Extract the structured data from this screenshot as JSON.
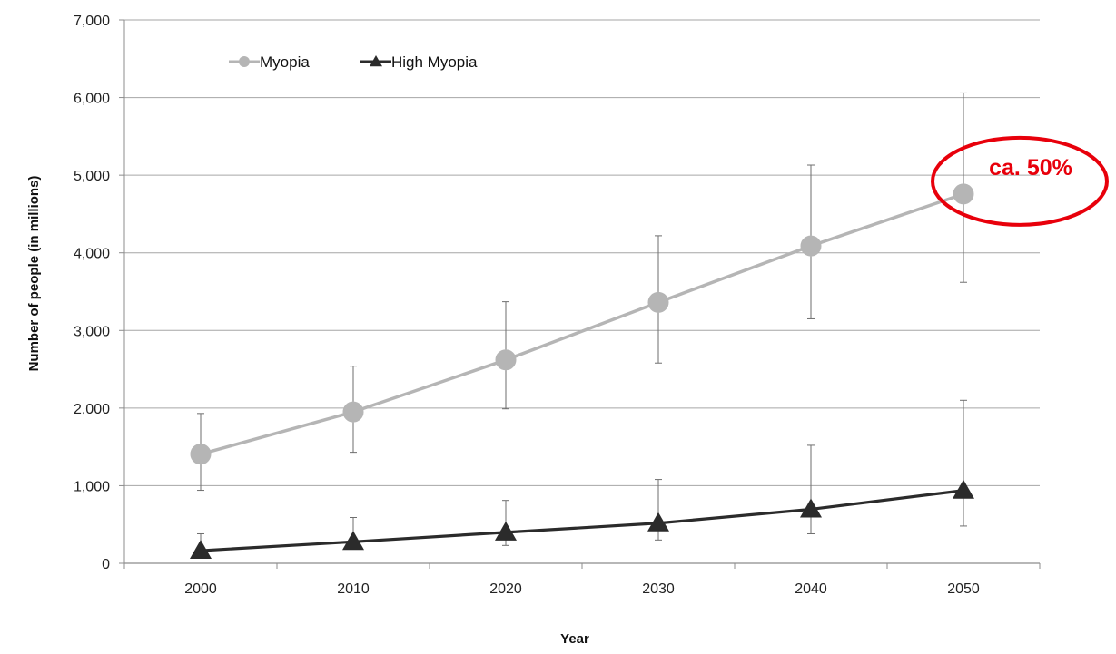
{
  "chart_data": {
    "type": "line",
    "title": "",
    "xlabel": "Year",
    "ylabel": "Number of people (in millions)",
    "ylim": [
      0,
      7000
    ],
    "y_ticks": [
      0,
      1000,
      2000,
      3000,
      4000,
      5000,
      6000,
      7000
    ],
    "y_tick_labels": [
      "0",
      "1,000",
      "2,000",
      "3,000",
      "4,000",
      "5,000",
      "6,000",
      "7,000"
    ],
    "categories": [
      "2000",
      "2010",
      "2020",
      "2030",
      "2040",
      "2050"
    ],
    "grid": "horizontal",
    "legend_position": "top-left",
    "series": [
      {
        "name": "Myopia",
        "color": "#b5b5b5",
        "marker": "circle",
        "values": [
          1406,
          1950,
          2620,
          3361,
          4089,
          4758
        ],
        "err_low": [
          940,
          1430,
          1990,
          2580,
          3150,
          3620
        ],
        "err_high": [
          1930,
          2540,
          3370,
          4220,
          5130,
          6060
        ]
      },
      {
        "name": "High Myopia",
        "color": "#2b2b2b",
        "marker": "triangle",
        "values": [
          163,
          277,
          399,
          517,
          696,
          938
        ],
        "err_low": [
          160,
          270,
          230,
          300,
          380,
          480
        ],
        "err_high": [
          380,
          590,
          810,
          1080,
          1520,
          2100
        ]
      }
    ],
    "annotation": {
      "text": "ca. 50%",
      "color": "#e8000b",
      "target_category": "2050",
      "target_series": "Myopia"
    }
  }
}
